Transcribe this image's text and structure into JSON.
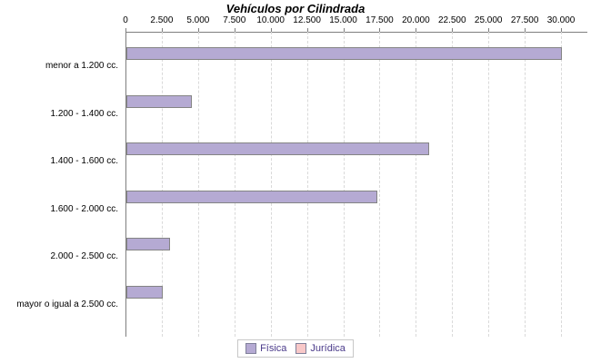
{
  "chart_data": {
    "type": "bar",
    "orientation": "horizontal",
    "title": "Vehículos por Cilindrada",
    "categories": [
      "menor a 1.200 cc.",
      "1.200 - 1.400 cc.",
      "1.400 - 1.600 cc.",
      "1.600 - 2.000 cc.",
      "2.000 - 2.500 cc.",
      "mayor o igual a 2.500 cc."
    ],
    "series": [
      {
        "name": "Física",
        "color": "#b5aad3",
        "border_color": "#848484",
        "values": [
          29900,
          4400,
          20750,
          17150,
          2900,
          2350
        ]
      },
      {
        "name": "Jurídica",
        "color": "#f8c8c8",
        "border_color": "#848484",
        "values": [
          0,
          0,
          0,
          0,
          0,
          0
        ]
      }
    ],
    "x_ticks": [
      0,
      2500,
      5000,
      7500,
      10000,
      12500,
      15000,
      17500,
      20000,
      22500,
      25000,
      27500,
      30000
    ],
    "x_tick_labels": [
      "0",
      "2.500",
      "5.000",
      "7.500",
      "10.000",
      "12.500",
      "15.000",
      "17.500",
      "20.000",
      "22.500",
      "25.000",
      "27.500",
      "30.000"
    ],
    "xlim": [
      0,
      31800
    ],
    "grid": "vertical-dashed",
    "legend_position": "bottom",
    "colors": {
      "axis": "#7f7f7f",
      "gridline": "#d9d9d9",
      "title_text": "#000000",
      "tick_text": "#000000",
      "category_text": "#000000",
      "legend_text": "#4a3a8a",
      "legend_border": "#c8c8c8"
    }
  }
}
